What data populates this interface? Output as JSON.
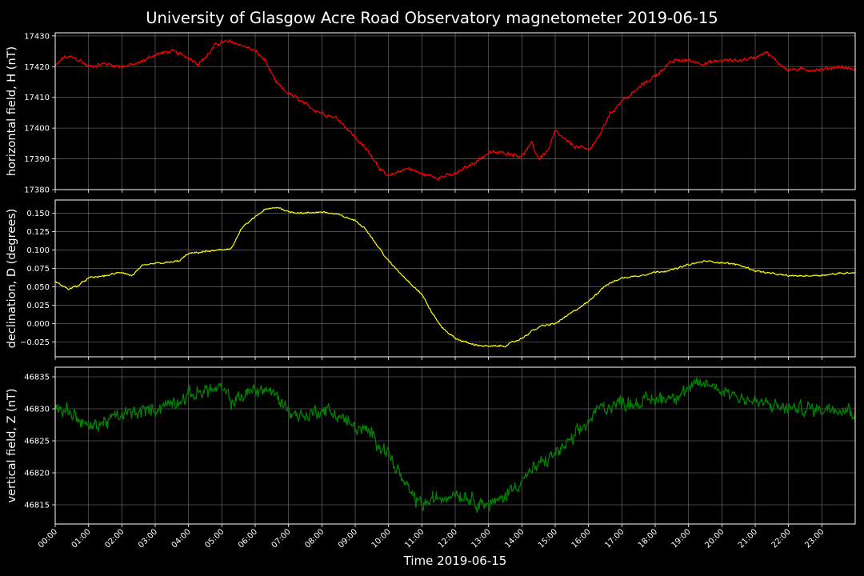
{
  "figure": {
    "title": "University of Glasgow Acre Road Observatory magnetometer 2019-06-15",
    "xlabel": "Time 2019-06-15",
    "background": "#000000",
    "grid_color": "#808080",
    "text_color": "#ffffff"
  },
  "chart_data": [
    {
      "type": "line",
      "name": "horizontal-field",
      "ylabel": "horizontal field, H (nT)",
      "color": "#ff0000",
      "xlim": [
        0,
        24
      ],
      "ylim": [
        17380,
        17431
      ],
      "yticks": [
        17380,
        17390,
        17400,
        17410,
        17420,
        17430
      ],
      "xticks": [
        "00:00",
        "01:00",
        "02:00",
        "03:00",
        "04:00",
        "05:00",
        "06:00",
        "07:00",
        "08:00",
        "09:00",
        "10:00",
        "11:00",
        "12:00",
        "13:00",
        "14:00",
        "15:00",
        "16:00",
        "17:00",
        "18:00",
        "19:00",
        "20:00",
        "21:00",
        "22:00",
        "23:00"
      ],
      "grid": true,
      "noise": 0.8,
      "x": [
        0,
        0.25,
        0.5,
        0.75,
        1,
        1.5,
        2,
        2.5,
        3,
        3.5,
        4,
        4.3,
        4.6,
        4.8,
        5,
        5.3,
        5.6,
        6,
        6.3,
        6.6,
        6.9,
        7.2,
        7.6,
        8,
        8.5,
        9,
        9.5,
        9.8,
        10,
        10.3,
        10.6,
        11,
        11.5,
        12,
        12.3,
        12.6,
        13,
        13.5,
        14,
        14.3,
        14.5,
        14.8,
        15,
        15.3,
        15.6,
        16,
        16.3,
        16.6,
        17,
        17.3,
        17.6,
        18,
        18.3,
        18.6,
        19,
        19.5,
        20,
        20.5,
        21,
        21.3,
        21.6,
        22,
        22.5,
        23,
        23.5,
        24
      ],
      "values": [
        17420,
        17423,
        17423,
        17422,
        17420,
        17421,
        17420,
        17421,
        17424,
        17425,
        17423,
        17421,
        17424,
        17427,
        17428,
        17428,
        17427,
        17425,
        17422,
        17415,
        17412,
        17410,
        17407,
        17405,
        17403,
        17397,
        17391,
        17386,
        17384,
        17386,
        17387,
        17385,
        17384,
        17385,
        17387,
        17389,
        17392,
        17392,
        17391,
        17395,
        17390,
        17393,
        17399,
        17396,
        17394,
        17393,
        17397,
        17404,
        17409,
        17411,
        17414,
        17417,
        17420,
        17422,
        17422,
        17421,
        17422,
        17422,
        17423,
        17425,
        17422,
        17419,
        17419,
        17419,
        17420,
        17419
      ]
    },
    {
      "type": "line",
      "name": "declination",
      "ylabel": "declination, D (degrees)",
      "color": "#ffff00",
      "xlim": [
        0,
        24
      ],
      "ylim": [
        -0.045,
        0.168
      ],
      "yticks": [
        -0.025,
        0.0,
        0.025,
        0.05,
        0.075,
        0.1,
        0.125,
        0.15
      ],
      "ytick_labels": [
        "−0.025",
        "0.000",
        "0.025",
        "0.050",
        "0.075",
        "0.100",
        "0.125",
        "0.150"
      ],
      "xticks": [
        "00:00",
        "01:00",
        "02:00",
        "03:00",
        "04:00",
        "05:00",
        "06:00",
        "07:00",
        "08:00",
        "09:00",
        "10:00",
        "11:00",
        "12:00",
        "13:00",
        "14:00",
        "15:00",
        "16:00",
        "17:00",
        "18:00",
        "19:00",
        "20:00",
        "21:00",
        "22:00",
        "23:00"
      ],
      "grid": true,
      "noise": 0.0015,
      "x": [
        0,
        0.4,
        0.7,
        1,
        1.5,
        2,
        2.3,
        2.6,
        3,
        3.4,
        3.7,
        4,
        4.5,
        5,
        5.3,
        5.6,
        6,
        6.3,
        6.7,
        7,
        7.5,
        8,
        8.5,
        9,
        9.3,
        9.6,
        10,
        10.5,
        11,
        11.3,
        11.6,
        12,
        12.5,
        13,
        13.5,
        14,
        14.3,
        14.6,
        15,
        15.5,
        16,
        16.5,
        17,
        17.5,
        18,
        18.5,
        19,
        19.5,
        20,
        20.5,
        21,
        21.5,
        22,
        22.5,
        23,
        23.5,
        24
      ],
      "values": [
        0.057,
        0.047,
        0.052,
        0.062,
        0.065,
        0.07,
        0.065,
        0.078,
        0.082,
        0.083,
        0.085,
        0.095,
        0.098,
        0.1,
        0.103,
        0.13,
        0.145,
        0.155,
        0.158,
        0.152,
        0.15,
        0.152,
        0.148,
        0.14,
        0.13,
        0.11,
        0.085,
        0.062,
        0.04,
        0.015,
        -0.005,
        -0.02,
        -0.028,
        -0.031,
        -0.03,
        -0.02,
        -0.01,
        -0.003,
        0.0,
        0.015,
        0.03,
        0.052,
        0.062,
        0.065,
        0.07,
        0.073,
        0.08,
        0.085,
        0.083,
        0.08,
        0.072,
        0.068,
        0.065,
        0.065,
        0.066,
        0.068,
        0.07
      ]
    },
    {
      "type": "line",
      "name": "vertical-field",
      "ylabel": "vertical field, Z (nT)",
      "color": "#008000",
      "xlim": [
        0,
        24
      ],
      "ylim": [
        46812,
        46836.5
      ],
      "yticks": [
        46815,
        46820,
        46825,
        46830,
        46835
      ],
      "xticks": [
        "00:00",
        "01:00",
        "02:00",
        "03:00",
        "04:00",
        "05:00",
        "06:00",
        "07:00",
        "08:00",
        "09:00",
        "10:00",
        "11:00",
        "12:00",
        "13:00",
        "14:00",
        "15:00",
        "16:00",
        "17:00",
        "18:00",
        "19:00",
        "20:00",
        "21:00",
        "22:00",
        "23:00"
      ],
      "grid": true,
      "noise": 1.4,
      "x": [
        0,
        0.3,
        0.6,
        1,
        1.5,
        2,
        2.5,
        3,
        3.5,
        4,
        4.5,
        5,
        5.3,
        5.6,
        6,
        6.4,
        6.8,
        7.2,
        7.6,
        8,
        8.5,
        9,
        9.5,
        10,
        10.3,
        10.6,
        11,
        11.5,
        12,
        12.5,
        13,
        13.3,
        13.6,
        14,
        14.5,
        15,
        15.5,
        16,
        16.3,
        16.6,
        17,
        17.5,
        18,
        18.5,
        19,
        19.5,
        20,
        20.5,
        21,
        21.5,
        22,
        22.5,
        23,
        23.5,
        24
      ],
      "values": [
        46830,
        46830,
        46829,
        46827,
        46828,
        46829,
        46829.5,
        46830,
        46831,
        46832,
        46833,
        46833,
        46831,
        46832,
        46833,
        46833,
        46831,
        46829,
        46829,
        46830,
        46829,
        46827,
        46826,
        46823,
        46820,
        46817,
        46815,
        46816,
        46817,
        46816,
        46815,
        46815.5,
        46817,
        46819,
        46821,
        46823,
        46825,
        46828,
        46830,
        46830.5,
        46831,
        46831,
        46831.5,
        46832,
        46833,
        46834,
        46833,
        46832,
        46831,
        46830.5,
        46830,
        46830,
        46830,
        46830.5,
        46829.5
      ]
    }
  ]
}
